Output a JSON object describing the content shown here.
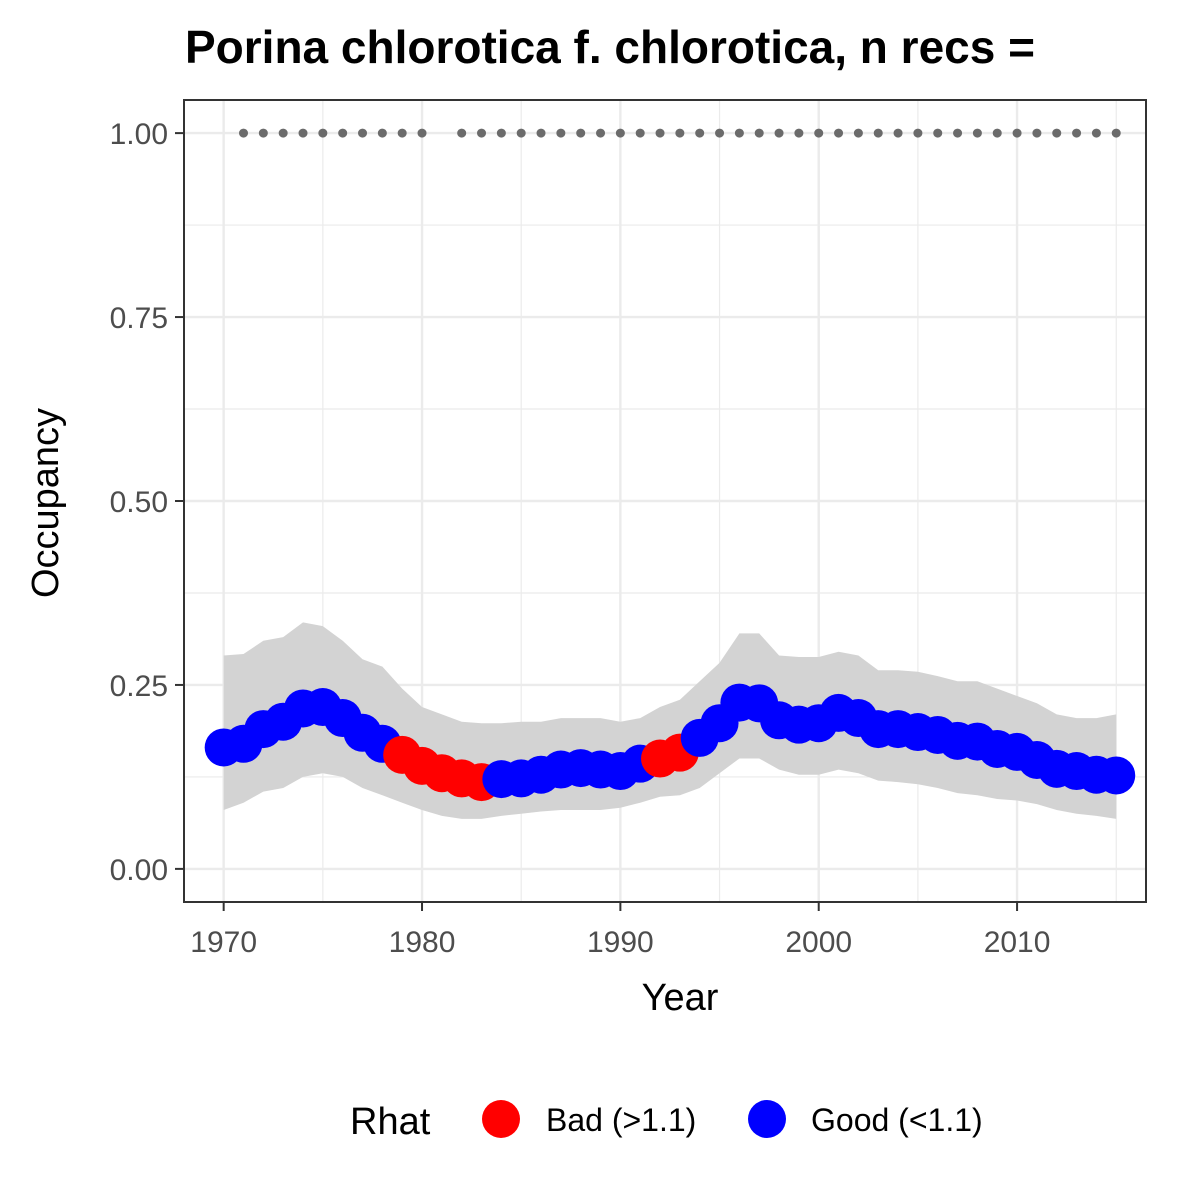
{
  "chart_data": {
    "type": "scatter",
    "title": "Porina chlorotica f. chlorotica, n recs =",
    "xlabel": "Year",
    "ylabel": "Occupancy",
    "xlim": [
      1968,
      2016.5
    ],
    "ylim": [
      -0.045,
      1.045
    ],
    "x_ticks": [
      1970,
      1980,
      1990,
      2000,
      2010
    ],
    "x_tick_labels": [
      "1970",
      "1980",
      "1990",
      "2000",
      "2010"
    ],
    "y_ticks": [
      0,
      0.25,
      0.5,
      0.75,
      1.0
    ],
    "y_tick_labels": [
      "0.00",
      "0.25",
      "0.50",
      "0.75",
      "1.00"
    ],
    "grid": true,
    "legend": {
      "title": "Rhat",
      "position": "bottom",
      "entries": [
        {
          "label": "Bad (>1.1)",
          "color": "#ff0000"
        },
        {
          "label": "Good (<1.1)",
          "color": "#0000ff"
        }
      ]
    },
    "series": [
      {
        "name": "Occupancy",
        "x": [
          1970,
          1971,
          1972,
          1973,
          1974,
          1975,
          1976,
          1977,
          1978,
          1979,
          1980,
          1981,
          1982,
          1983,
          1984,
          1985,
          1986,
          1987,
          1988,
          1989,
          1990,
          1991,
          1992,
          1993,
          1994,
          1995,
          1996,
          1997,
          1998,
          1999,
          2000,
          2001,
          2002,
          2003,
          2004,
          2005,
          2006,
          2007,
          2008,
          2009,
          2010,
          2011,
          2012,
          2013,
          2014,
          2015
        ],
        "y": [
          0.165,
          0.17,
          0.19,
          0.2,
          0.218,
          0.22,
          0.205,
          0.185,
          0.17,
          0.155,
          0.14,
          0.13,
          0.123,
          0.118,
          0.122,
          0.123,
          0.128,
          0.135,
          0.137,
          0.135,
          0.133,
          0.143,
          0.15,
          0.158,
          0.178,
          0.198,
          0.226,
          0.225,
          0.202,
          0.196,
          0.198,
          0.212,
          0.205,
          0.19,
          0.19,
          0.186,
          0.182,
          0.174,
          0.173,
          0.163,
          0.159,
          0.148,
          0.136,
          0.133,
          0.128,
          0.127
        ],
        "rhat": [
          "Good",
          "Good",
          "Good",
          "Good",
          "Good",
          "Good",
          "Good",
          "Good",
          "Good",
          "Bad",
          "Bad",
          "Bad",
          "Bad",
          "Bad",
          "Good",
          "Good",
          "Good",
          "Good",
          "Good",
          "Good",
          "Good",
          "Good",
          "Bad",
          "Bad",
          "Good",
          "Good",
          "Good",
          "Good",
          "Good",
          "Good",
          "Good",
          "Good",
          "Good",
          "Good",
          "Good",
          "Good",
          "Good",
          "Good",
          "Good",
          "Good",
          "Good",
          "Good",
          "Good",
          "Good",
          "Good",
          "Good"
        ]
      }
    ],
    "ribbon": {
      "x": [
        1970,
        1971,
        1972,
        1973,
        1974,
        1975,
        1976,
        1977,
        1978,
        1979,
        1980,
        1981,
        1982,
        1983,
        1984,
        1985,
        1986,
        1987,
        1988,
        1989,
        1990,
        1991,
        1992,
        1993,
        1994,
        1995,
        1996,
        1997,
        1998,
        1999,
        2000,
        2001,
        2002,
        2003,
        2004,
        2005,
        2006,
        2007,
        2008,
        2009,
        2010,
        2011,
        2012,
        2013,
        2014,
        2015
      ],
      "lower": [
        0.08,
        0.09,
        0.105,
        0.11,
        0.125,
        0.13,
        0.125,
        0.11,
        0.1,
        0.09,
        0.08,
        0.072,
        0.068,
        0.068,
        0.072,
        0.075,
        0.078,
        0.08,
        0.08,
        0.08,
        0.083,
        0.09,
        0.098,
        0.1,
        0.11,
        0.13,
        0.15,
        0.15,
        0.135,
        0.128,
        0.128,
        0.135,
        0.13,
        0.12,
        0.118,
        0.115,
        0.11,
        0.103,
        0.1,
        0.095,
        0.093,
        0.088,
        0.08,
        0.075,
        0.072,
        0.068
      ],
      "upper": [
        0.29,
        0.292,
        0.31,
        0.315,
        0.335,
        0.33,
        0.31,
        0.285,
        0.275,
        0.245,
        0.22,
        0.21,
        0.2,
        0.198,
        0.198,
        0.2,
        0.2,
        0.205,
        0.205,
        0.205,
        0.2,
        0.205,
        0.22,
        0.23,
        0.255,
        0.28,
        0.32,
        0.32,
        0.29,
        0.288,
        0.288,
        0.295,
        0.29,
        0.27,
        0.27,
        0.268,
        0.262,
        0.255,
        0.255,
        0.245,
        0.235,
        0.225,
        0.21,
        0.205,
        0.205,
        0.21
      ]
    },
    "record_years": {
      "x": [
        1971,
        1972,
        1973,
        1974,
        1975,
        1976,
        1977,
        1978,
        1979,
        1980,
        1982,
        1983,
        1984,
        1985,
        1986,
        1987,
        1988,
        1989,
        1990,
        1991,
        1992,
        1993,
        1994,
        1995,
        1996,
        1997,
        1998,
        1999,
        2000,
        2001,
        2002,
        2003,
        2004,
        2005,
        2006,
        2007,
        2008,
        2009,
        2010,
        2011,
        2012,
        2013,
        2014,
        2015
      ],
      "y": 1.0
    },
    "colors": {
      "good": "#0000ff",
      "bad": "#ff0000",
      "ribbon": "#d3d3d3",
      "record_dots": "#6b6b6b",
      "grid": "#ebebeb",
      "panel_border": "#333333"
    }
  }
}
